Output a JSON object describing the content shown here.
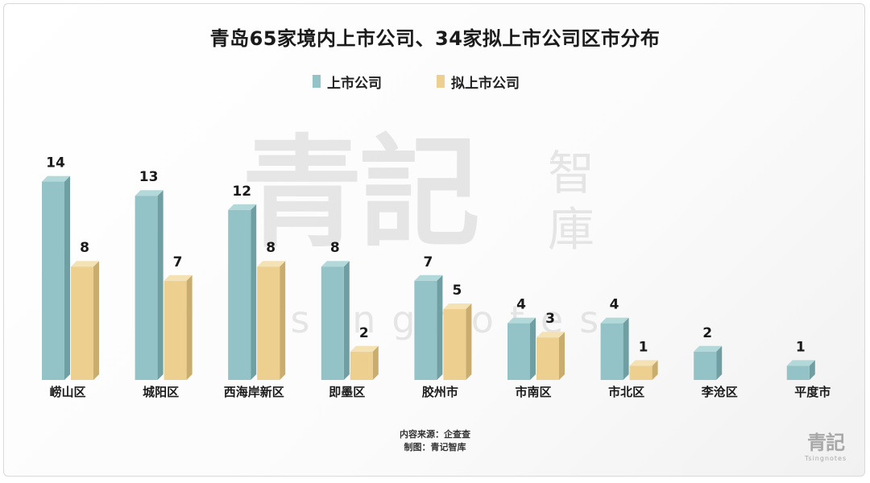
{
  "colors": {
    "series1": "#93c3c6",
    "series1_side": "#6f9fa2",
    "series1_top": "#b3d8da",
    "series2": "#edd08f",
    "series2_side": "#c9ad6e",
    "series2_top": "#f4e2b5"
  },
  "watermark": {
    "text_main": "青記",
    "text_side": "智庫",
    "text_latin": "Tsingnotes"
  },
  "logo": {
    "main": "青記",
    "sub": "Tsingnotes"
  },
  "source": {
    "line1": "内容来源：企查查",
    "line2": "制图：青记智库"
  },
  "chart_data": {
    "type": "bar",
    "title": "青岛65家境内上市公司、34家拟上市公司区市分布",
    "categories": [
      "崂山区",
      "城阳区",
      "西海岸新区",
      "即墨区",
      "胶州市",
      "市南区",
      "市北区",
      "李沧区",
      "平度市"
    ],
    "series": [
      {
        "name": "上市公司",
        "values": [
          14,
          13,
          12,
          8,
          7,
          4,
          4,
          2,
          1
        ],
        "labels": [
          "14",
          "13",
          "12",
          "8",
          "7",
          "4",
          "4",
          "2",
          "1"
        ]
      },
      {
        "name": "拟上市公司",
        "values": [
          8,
          7,
          8,
          2,
          5,
          3,
          1,
          0,
          0
        ],
        "labels": [
          "8",
          "7",
          "8",
          "2",
          "5",
          "3",
          "1",
          "",
          ""
        ]
      }
    ],
    "legend": "top-center",
    "grid": false
  }
}
